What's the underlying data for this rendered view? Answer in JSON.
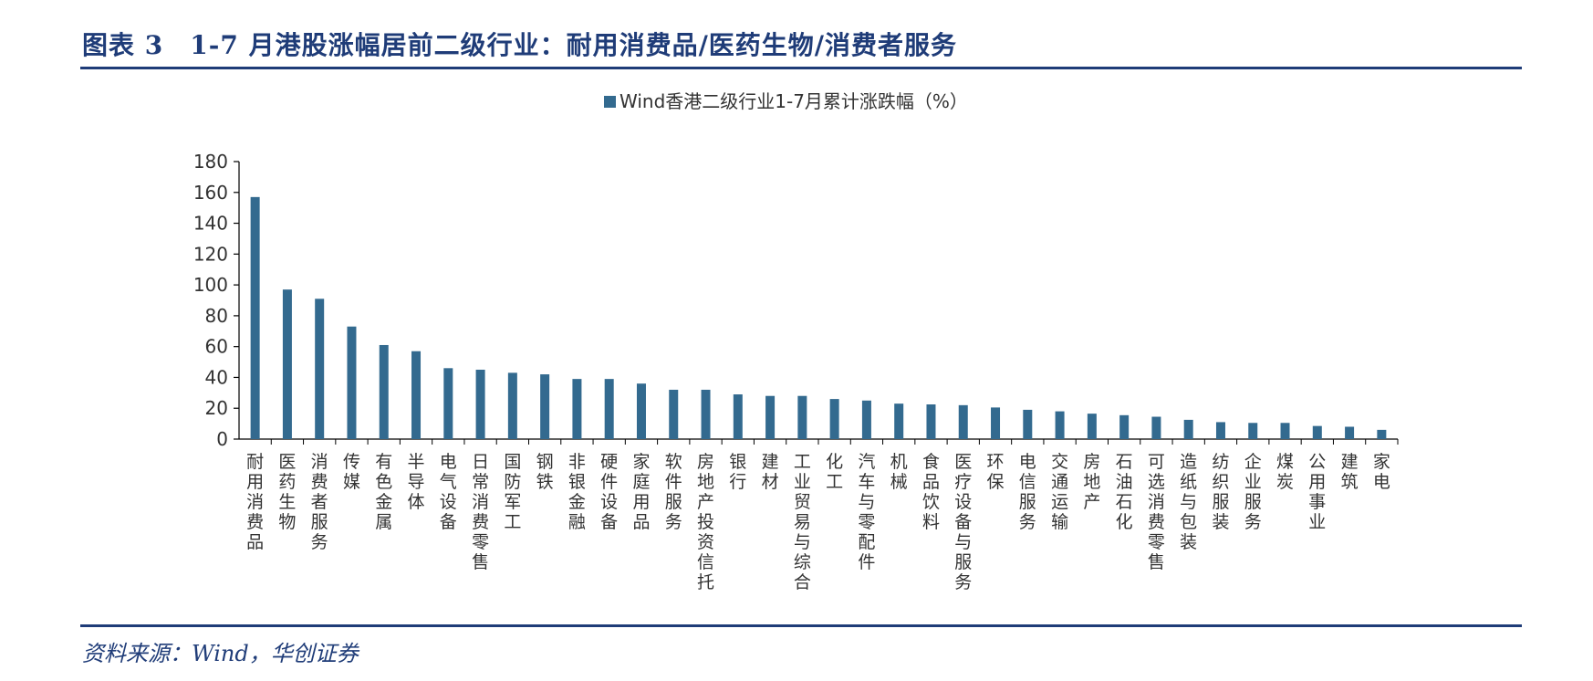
{
  "header": {
    "title": "图表 3　1-7 月港股涨幅居前二级行业：耐用消费品/医药生物/消费者服务"
  },
  "footer": {
    "source": "资料来源：Wind，华创证券"
  },
  "chart_data": {
    "type": "bar",
    "title": "",
    "xlabel": "",
    "ylabel": "",
    "ylim": [
      0,
      180
    ],
    "yticks": [
      "0",
      "20",
      "40",
      "60",
      "80",
      "100",
      "120",
      "140",
      "160",
      "180"
    ],
    "grid": false,
    "legend_position": "top-center",
    "bar_color": "#336a8f",
    "categories": [
      "耐用消费品",
      "医药生物",
      "消费者服务",
      "传媒",
      "有色金属",
      "半导体",
      "电气设备",
      "日常消费零售",
      "国防军工",
      "钢铁",
      "非银金融",
      "硬件设备",
      "家庭用品",
      "软件服务",
      "房地产投资信托",
      "银行",
      "建材",
      "工业贸易与综合",
      "化工",
      "汽车与零配件",
      "机械",
      "食品饮料",
      "医疗设备与服务",
      "环保",
      "电信服务",
      "交通运输",
      "房地产",
      "石油石化",
      "可选消费零售",
      "造纸与包装",
      "纺织服装",
      "企业服务",
      "煤炭",
      "公用事业",
      "建筑",
      "家电"
    ],
    "series": [
      {
        "name": "Wind香港二级行业1-7月累计涨跌幅（%）",
        "values": [
          157,
          97,
          91,
          73,
          61,
          57,
          46,
          45,
          43,
          42,
          39,
          39,
          36,
          32,
          32,
          29,
          28,
          28,
          26,
          25,
          23,
          22.5,
          22,
          20.5,
          19,
          18,
          16.5,
          15.5,
          14.5,
          12.5,
          11,
          10.5,
          10.5,
          8.5,
          8,
          6
        ]
      }
    ]
  }
}
